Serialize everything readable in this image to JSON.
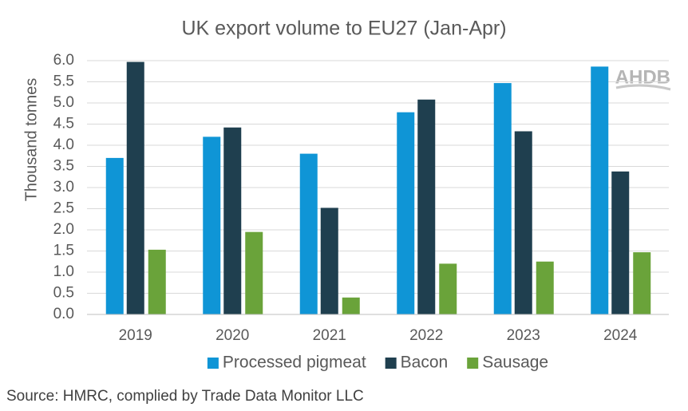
{
  "chart_data": {
    "type": "bar",
    "title": "UK export volume to EU27 (Jan-Apr)",
    "y_label": "Thousand tonnes",
    "categories": [
      "2019",
      "2020",
      "2021",
      "2022",
      "2023",
      "2024"
    ],
    "series": [
      {
        "name": "Processed pigmeat",
        "color": "#0f95d6",
        "values": [
          3.7,
          4.2,
          3.8,
          4.78,
          5.47,
          5.86
        ]
      },
      {
        "name": "Bacon",
        "color": "#1f3f4f",
        "values": [
          5.97,
          4.42,
          2.52,
          5.08,
          4.33,
          3.38
        ]
      },
      {
        "name": "Sausage",
        "color": "#6aa33a",
        "values": [
          1.53,
          1.95,
          0.4,
          1.2,
          1.25,
          1.47
        ]
      }
    ],
    "ylim": [
      0,
      6
    ],
    "yticks": [
      {
        "value": 0,
        "label": "0.0"
      },
      {
        "value": 0.5,
        "label": "0.5"
      },
      {
        "value": 1,
        "label": "1.0"
      },
      {
        "value": 1.5,
        "label": "1.5"
      },
      {
        "value": 2,
        "label": "2.0"
      },
      {
        "value": 2.5,
        "label": "2.5"
      },
      {
        "value": 3,
        "label": "3.0"
      },
      {
        "value": 3.5,
        "label": "3.5"
      },
      {
        "value": 4,
        "label": "4.0"
      },
      {
        "value": 4.5,
        "label": "4.5"
      },
      {
        "value": 5,
        "label": "5.0"
      },
      {
        "value": 5.5,
        "label": "5.5"
      },
      {
        "value": 6,
        "label": "6.0"
      }
    ],
    "grid": true,
    "legend": "bottom",
    "logo": "AHDB",
    "source": "Source: HMRC, complied by Trade Data Monitor LLC"
  }
}
